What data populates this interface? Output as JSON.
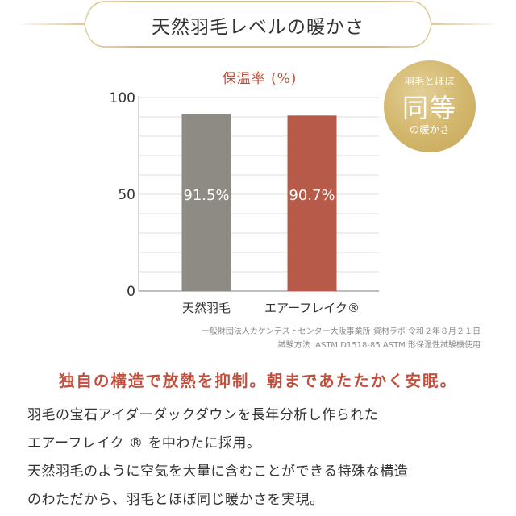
{
  "header": {
    "title": "天然羽毛レベルの暖かさ"
  },
  "badge": {
    "top": "羽毛とほぼ",
    "main": "同等",
    "bottom": "の暖かさ"
  },
  "chart_data": {
    "type": "bar",
    "title": "保温率 (%)",
    "categories": [
      "天然羽毛",
      "エアーフレイク®"
    ],
    "values": [
      91.5,
      90.7
    ],
    "value_labels": [
      "91.5%",
      "90.7%"
    ],
    "colors": [
      "#8e8b85",
      "#b85a4a"
    ],
    "ylim": [
      0,
      100
    ],
    "yticks": [
      0,
      50,
      100
    ],
    "grid": true
  },
  "source": {
    "line1": "一般財団法人カケンテストセンター大阪事業所 資材ラボ 令和２年８月２１日",
    "line2": "試験方法 :ASTM D1518-85 ASTM 形保温性試験機使用"
  },
  "headline": "独自の構造で放熱を抑制。朝まであたたかく安眠。",
  "body": {
    "line1": "羽毛の宝石アイダーダックダウンを長年分析し作られた",
    "line2": "エアーフレイク ® を中わたに採用。",
    "line3": "天然羽毛のように空気を大量に含むことができる特殊な構造",
    "line4": "のわただから、羽毛とほぼ同じ暖かさを実現。"
  }
}
